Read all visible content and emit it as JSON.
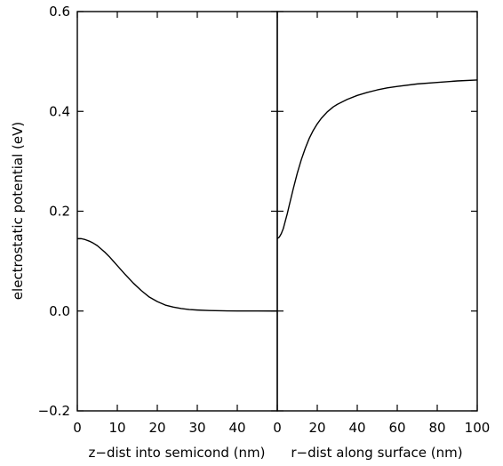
{
  "chart_data": {
    "type": "line",
    "ylabel": "electrostatic potential (eV)",
    "ylim": [
      -0.2,
      0.6
    ],
    "yticks": [
      "−0.2",
      "0.0",
      "0.2",
      "0.4",
      "0.6"
    ],
    "grid": false,
    "panels": [
      {
        "xlabel": "z−dist into semicond (nm)",
        "xlim": [
          0,
          50
        ],
        "xticks": [
          "0",
          "10",
          "20",
          "30",
          "40"
        ],
        "series": [
          {
            "x": [
              0,
              1,
              2,
              3,
              4,
              5,
              6,
              7,
              8,
              9,
              10,
              12,
              14,
              16,
              18,
              20,
              22,
              24,
              26,
              28,
              30,
              33,
              36,
              40,
              45,
              50
            ],
            "y": [
              0.145,
              0.145,
              0.143,
              0.14,
              0.136,
              0.131,
              0.124,
              0.117,
              0.109,
              0.1,
              0.091,
              0.073,
              0.056,
              0.041,
              0.028,
              0.019,
              0.012,
              0.008,
              0.005,
              0.003,
              0.002,
              0.001,
              0.0005,
              0.0002,
              0.0001,
              0.0
            ]
          }
        ]
      },
      {
        "xlabel": "r−dist along surface (nm)",
        "xlim": [
          0,
          100
        ],
        "xticks": [
          "0",
          "20",
          "40",
          "60",
          "80",
          "100"
        ],
        "series": [
          {
            "x": [
              0,
              1,
              2,
              3,
              4,
              5,
              6,
              8,
              10,
              12,
              14,
              16,
              18,
              20,
              22,
              25,
              28,
              30,
              35,
              40,
              45,
              50,
              55,
              60,
              70,
              80,
              90,
              100
            ],
            "y": [
              0.145,
              0.148,
              0.155,
              0.165,
              0.18,
              0.195,
              0.212,
              0.245,
              0.276,
              0.303,
              0.326,
              0.346,
              0.362,
              0.375,
              0.386,
              0.399,
              0.409,
              0.414,
              0.424,
              0.432,
              0.438,
              0.443,
              0.447,
              0.45,
              0.455,
              0.458,
              0.461,
              0.463
            ]
          }
        ]
      }
    ]
  }
}
